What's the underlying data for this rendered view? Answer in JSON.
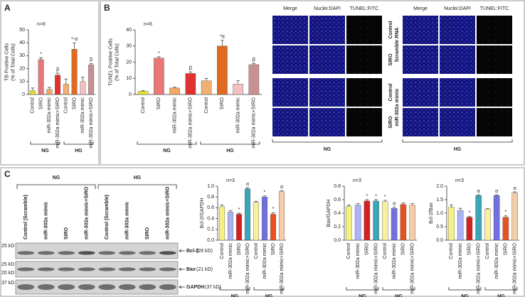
{
  "panel_labels": [
    "A",
    "B",
    "C"
  ],
  "chart_data": [
    {
      "type": "bar",
      "note": "n=6",
      "ylabel": [
        "TB Positive Cells",
        "(% of Total Cells)"
      ],
      "categories": [
        "Control",
        "SIRO",
        "miR-302a mimic",
        "miR-302a mimic+SIRO",
        "Control",
        "SIRO",
        "miR-302a mimic",
        "miR-302a mimic+SIRO"
      ],
      "groups": [
        "NG",
        "HG"
      ],
      "values": [
        3,
        27,
        4,
        15,
        8,
        35,
        10,
        23
      ],
      "errors": [
        2,
        1.5,
        1.5,
        1.5,
        4,
        5,
        3.5,
        1
      ],
      "colors": [
        "#e8e030",
        "#e87878",
        "#f2a860",
        "#e03030",
        "#f0b070",
        "#e06a20",
        "#f5c0c0",
        "#c89090"
      ],
      "annotations": [
        null,
        "*",
        null,
        "β",
        null,
        "*-α",
        null,
        "β"
      ],
      "ylim": [
        0,
        50
      ],
      "yticks": [
        0,
        10,
        20,
        30,
        40,
        50
      ]
    },
    {
      "type": "bar",
      "note": "n=6",
      "ylabel": [
        "TUNEL Positive Cells",
        "(% of Total Cells)"
      ],
      "categories": [
        "Control",
        "SIRO",
        "miR-302a mimic",
        "miR-302a mimic+SIRO",
        "Control",
        "SIRO",
        "miR-302a mimic",
        "miR-302a mimic+SIRO"
      ],
      "groups": [
        "NG",
        "HG"
      ],
      "values": [
        2,
        22.5,
        4,
        13,
        8.5,
        30,
        6.5,
        18.5
      ],
      "errors": [
        0.5,
        0.8,
        0.5,
        1,
        1.5,
        3.5,
        2,
        0.8
      ],
      "colors": [
        "#e8e030",
        "#e87878",
        "#f2a860",
        "#e03030",
        "#f0b070",
        "#e06a20",
        "#f5c0c0",
        "#c89090"
      ],
      "annotations": [
        null,
        "*",
        null,
        "β",
        null,
        "*α",
        null,
        "β"
      ],
      "ylim": [
        0,
        40
      ],
      "yticks": [
        0,
        10,
        20,
        30,
        40
      ]
    },
    {
      "type": "bar",
      "note": "n=3",
      "ylabel": [
        "Bcl-2/GAPDH"
      ],
      "categories": [
        "Control",
        "miR-302a mimic",
        "SIRO",
        "miR-302a mimic+SIRO",
        "Control",
        "miR-302a mimic",
        "SIRO",
        "miR-302a mimic+SIRO"
      ],
      "groups": [
        "NG",
        "HG"
      ],
      "values": [
        0.62,
        0.52,
        0.48,
        0.95,
        0.7,
        0.8,
        0.48,
        0.9
      ],
      "errors": [
        0.03,
        0.03,
        0.02,
        0.02,
        0.02,
        0.02,
        0.03,
        0.02
      ],
      "colors": [
        "#f5f080",
        "#a8b4f4",
        "#d42020",
        "#3aa6b8",
        "#f8f0a0",
        "#7070e0",
        "#e85020",
        "#f5cca8"
      ],
      "annotations": [
        null,
        null,
        "*",
        "α",
        null,
        "*",
        "*",
        "α"
      ],
      "ylim": [
        0,
        1.0
      ],
      "yticks": [
        {
          "value": 0,
          "label": "0.0"
        },
        0.2,
        0.4,
        0.6,
        0.8,
        {
          "value": 1,
          "label": "1.0"
        }
      ]
    },
    {
      "type": "bar",
      "note": "n=3",
      "ylabel": [
        "Bax/GAPDH"
      ],
      "categories": [
        "Control",
        "miR-302a mimic",
        "SIRO",
        "miR-302a mimic+SIRO",
        "Control",
        "miR-302a mimic",
        "SIRO",
        "miR-302a mimic+SIRO"
      ],
      "groups": [
        "NG",
        "HG"
      ],
      "values": [
        0.5,
        0.52,
        0.58,
        0.58,
        0.57,
        0.47,
        0.53,
        0.52
      ],
      "errors": [
        0.02,
        0.02,
        0.02,
        0.02,
        0.02,
        0.02,
        0.02,
        0.02
      ],
      "colors": [
        "#f5f080",
        "#a8b4f4",
        "#d42020",
        "#3aa6b8",
        "#f8f0a0",
        "#7070e0",
        "#e85020",
        "#f5cca8"
      ],
      "annotations": [
        null,
        null,
        "*",
        "*",
        "*",
        "α",
        null,
        null
      ],
      "ylim": [
        0,
        0.8
      ],
      "yticks": [
        {
          "value": 0,
          "label": "0.0"
        },
        0.2,
        0.4,
        0.6,
        0.8
      ]
    },
    {
      "type": "bar",
      "note": "n=3",
      "ylabel": [
        "Bcl-2/Bax"
      ],
      "categories": [
        "Control",
        "miR-302a mimic",
        "SIRO",
        "miR-302a mimic+SIRO",
        "Control",
        "miR-302a mimic",
        "SIRO",
        "miR-302a mimic+SIRO"
      ],
      "groups": [
        "NG",
        "HG"
      ],
      "values": [
        1.22,
        1.1,
        0.85,
        1.65,
        1.15,
        1.65,
        0.85,
        1.75
      ],
      "errors": [
        0.08,
        0.08,
        0.03,
        0.03,
        0.02,
        0.03,
        0.05,
        0.04
      ],
      "colors": [
        "#f5f080",
        "#a8b4f4",
        "#d42020",
        "#3aa6b8",
        "#f8f0a0",
        "#7070e0",
        "#e85020",
        "#f5cca8"
      ],
      "annotations": [
        null,
        null,
        "*",
        "α",
        null,
        "α",
        "*",
        "α"
      ],
      "ylim": [
        0,
        2.0
      ],
      "yticks": [
        {
          "value": 0,
          "label": "0.0"
        },
        0.5,
        {
          "value": 1,
          "label": "1.0"
        },
        1.5,
        {
          "value": 2,
          "label": "2.0"
        }
      ]
    }
  ],
  "microscopy": {
    "columns": [
      "Merge",
      "Nuclei:DAPI",
      "TUNEL:FITC"
    ],
    "treatments": [
      "Scramble RNA",
      "miR-302a mimic"
    ],
    "rows": [
      "Control",
      "SIRO"
    ],
    "groups": [
      "NG",
      "HG"
    ]
  },
  "blot": {
    "groups": [
      "NG",
      "HG"
    ],
    "lanes": [
      "Control (Scramble)",
      "miR-302a mimic",
      "SIRO",
      "miR-302a mimic+SIRO"
    ],
    "bands": [
      {
        "markers": [
          "25 kD"
        ],
        "name": "Bcl-2",
        "size": "(26 kD)"
      },
      {
        "markers": [
          "25 kD",
          "20 kD"
        ],
        "name": "Bax",
        "size": "(21 kD)"
      },
      {
        "markers": [
          "37 kD"
        ],
        "name": "GAPDH",
        "size": "(37 kD)"
      }
    ]
  }
}
